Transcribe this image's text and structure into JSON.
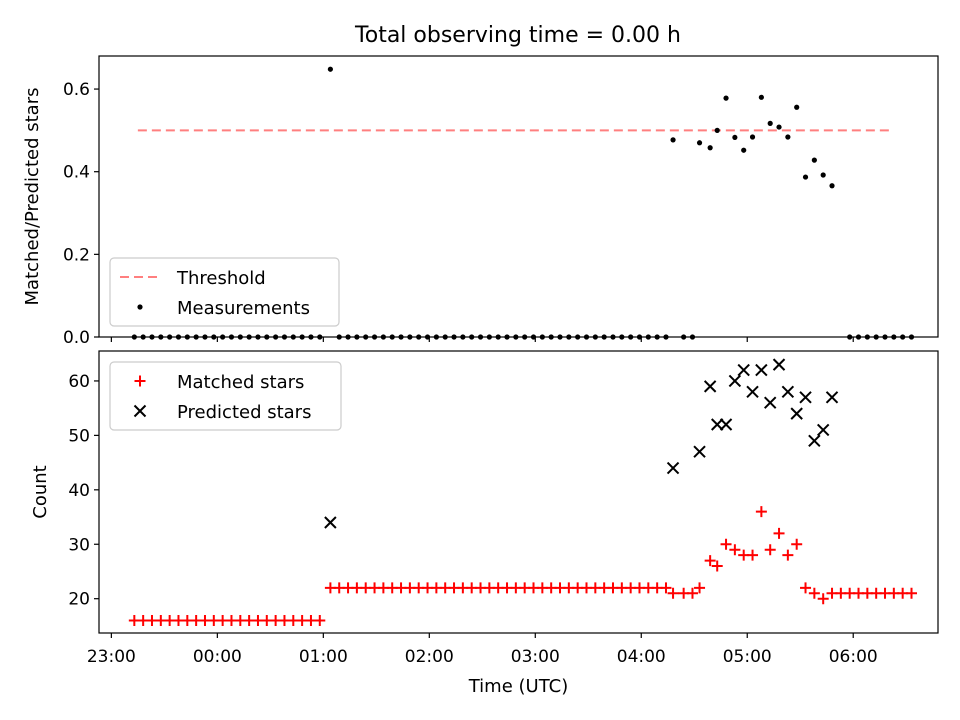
{
  "title": "Total observing time = 0.00 h",
  "chart_data": [
    {
      "type": "scatter",
      "panel": "top",
      "ylabel": "Matched/Predicted stars",
      "xlabel": "",
      "xlim": [
        "22:53",
        "06:48"
      ],
      "ylim": [
        0,
        0.68
      ],
      "yticks": [
        0.0,
        0.2,
        0.4,
        0.6
      ],
      "ytick_labels": [
        "0.0",
        "0.2",
        "0.4",
        "0.6"
      ],
      "xticks": [
        "23:00",
        "00:00",
        "01:00",
        "02:00",
        "03:00",
        "04:00",
        "05:00",
        "06:00"
      ],
      "legend_position": "lower-left",
      "threshold": {
        "name": "Threshold",
        "value": 0.5,
        "x_range": [
          "23:15",
          "06:22"
        ],
        "color": "#ff7f7f",
        "style": "dashed"
      },
      "series": [
        {
          "name": "Measurements",
          "marker": "dot",
          "color": "#000000",
          "points": [
            [
              "23:13",
              0
            ],
            [
              "23:18",
              0
            ],
            [
              "23:23",
              0
            ],
            [
              "23:28",
              0
            ],
            [
              "23:33",
              0
            ],
            [
              "23:38",
              0
            ],
            [
              "23:43",
              0
            ],
            [
              "23:48",
              0
            ],
            [
              "23:53",
              0
            ],
            [
              "23:58",
              0
            ],
            [
              "00:03",
              0
            ],
            [
              "00:08",
              0
            ],
            [
              "00:13",
              0
            ],
            [
              "00:18",
              0
            ],
            [
              "00:23",
              0
            ],
            [
              "00:28",
              0
            ],
            [
              "00:33",
              0
            ],
            [
              "00:38",
              0
            ],
            [
              "00:43",
              0
            ],
            [
              "00:48",
              0
            ],
            [
              "00:53",
              0
            ],
            [
              "00:58",
              0
            ],
            [
              "01:04",
              0.648
            ],
            [
              "01:09",
              0
            ],
            [
              "01:14",
              0
            ],
            [
              "01:19",
              0
            ],
            [
              "01:24",
              0
            ],
            [
              "01:29",
              0
            ],
            [
              "01:34",
              0
            ],
            [
              "01:39",
              0
            ],
            [
              "01:44",
              0
            ],
            [
              "01:49",
              0
            ],
            [
              "01:54",
              0
            ],
            [
              "01:59",
              0
            ],
            [
              "02:04",
              0
            ],
            [
              "02:09",
              0
            ],
            [
              "02:14",
              0
            ],
            [
              "02:19",
              0
            ],
            [
              "02:24",
              0
            ],
            [
              "02:29",
              0
            ],
            [
              "02:34",
              0
            ],
            [
              "02:39",
              0
            ],
            [
              "02:44",
              0
            ],
            [
              "02:49",
              0
            ],
            [
              "02:54",
              0
            ],
            [
              "02:59",
              0
            ],
            [
              "03:04",
              0
            ],
            [
              "03:09",
              0
            ],
            [
              "03:14",
              0
            ],
            [
              "03:19",
              0
            ],
            [
              "03:24",
              0
            ],
            [
              "03:29",
              0
            ],
            [
              "03:34",
              0
            ],
            [
              "03:39",
              0
            ],
            [
              "03:44",
              0
            ],
            [
              "03:49",
              0
            ],
            [
              "03:54",
              0
            ],
            [
              "03:59",
              0
            ],
            [
              "04:04",
              0
            ],
            [
              "04:09",
              0
            ],
            [
              "04:14",
              0
            ],
            [
              "04:24",
              0
            ],
            [
              "04:29",
              0
            ],
            [
              "04:18",
              0.477
            ],
            [
              "04:33",
              0.47
            ],
            [
              "04:39",
              0.458
            ],
            [
              "04:43",
              0.5
            ],
            [
              "04:48",
              0.578
            ],
            [
              "04:53",
              0.483
            ],
            [
              "04:58",
              0.452
            ],
            [
              "05:03",
              0.484
            ],
            [
              "05:08",
              0.58
            ],
            [
              "05:13",
              0.517
            ],
            [
              "05:18",
              0.508
            ],
            [
              "05:23",
              0.484
            ],
            [
              "05:28",
              0.556
            ],
            [
              "05:33",
              0.387
            ],
            [
              "05:38",
              0.428
            ],
            [
              "05:43",
              0.392
            ],
            [
              "05:48",
              0.366
            ],
            [
              "05:58",
              0
            ],
            [
              "06:03",
              0
            ],
            [
              "06:08",
              0
            ],
            [
              "06:13",
              0
            ],
            [
              "06:18",
              0
            ],
            [
              "06:23",
              0
            ],
            [
              "06:28",
              0
            ],
            [
              "06:33",
              0
            ]
          ]
        }
      ]
    },
    {
      "type": "scatter",
      "panel": "bottom",
      "ylabel": "Count",
      "xlabel": "Time (UTC)",
      "xlim": [
        "22:53",
        "06:48"
      ],
      "ylim": [
        13.7,
        65.5
      ],
      "yticks": [
        20,
        30,
        40,
        50,
        60
      ],
      "ytick_labels": [
        "20",
        "30",
        "40",
        "50",
        "60"
      ],
      "xticks": [
        "23:00",
        "00:00",
        "01:00",
        "02:00",
        "03:00",
        "04:00",
        "05:00",
        "06:00"
      ],
      "legend_position": "upper-left",
      "series": [
        {
          "name": "Matched stars",
          "marker": "plus",
          "color": "#ff0000",
          "points": [
            [
              "23:13",
              16
            ],
            [
              "23:18",
              16
            ],
            [
              "23:23",
              16
            ],
            [
              "23:28",
              16
            ],
            [
              "23:33",
              16
            ],
            [
              "23:38",
              16
            ],
            [
              "23:43",
              16
            ],
            [
              "23:48",
              16
            ],
            [
              "23:53",
              16
            ],
            [
              "23:58",
              16
            ],
            [
              "00:03",
              16
            ],
            [
              "00:08",
              16
            ],
            [
              "00:13",
              16
            ],
            [
              "00:18",
              16
            ],
            [
              "00:23",
              16
            ],
            [
              "00:28",
              16
            ],
            [
              "00:33",
              16
            ],
            [
              "00:38",
              16
            ],
            [
              "00:43",
              16
            ],
            [
              "00:48",
              16
            ],
            [
              "00:53",
              16
            ],
            [
              "00:58",
              16
            ],
            [
              "01:04",
              22
            ],
            [
              "01:09",
              22
            ],
            [
              "01:14",
              22
            ],
            [
              "01:19",
              22
            ],
            [
              "01:24",
              22
            ],
            [
              "01:29",
              22
            ],
            [
              "01:34",
              22
            ],
            [
              "01:39",
              22
            ],
            [
              "01:44",
              22
            ],
            [
              "01:49",
              22
            ],
            [
              "01:54",
              22
            ],
            [
              "01:59",
              22
            ],
            [
              "02:04",
              22
            ],
            [
              "02:09",
              22
            ],
            [
              "02:14",
              22
            ],
            [
              "02:19",
              22
            ],
            [
              "02:24",
              22
            ],
            [
              "02:29",
              22
            ],
            [
              "02:34",
              22
            ],
            [
              "02:39",
              22
            ],
            [
              "02:44",
              22
            ],
            [
              "02:49",
              22
            ],
            [
              "02:54",
              22
            ],
            [
              "02:59",
              22
            ],
            [
              "03:04",
              22
            ],
            [
              "03:09",
              22
            ],
            [
              "03:14",
              22
            ],
            [
              "03:19",
              22
            ],
            [
              "03:24",
              22
            ],
            [
              "03:29",
              22
            ],
            [
              "03:34",
              22
            ],
            [
              "03:39",
              22
            ],
            [
              "03:44",
              22
            ],
            [
              "03:49",
              22
            ],
            [
              "03:54",
              22
            ],
            [
              "03:59",
              22
            ],
            [
              "04:04",
              22
            ],
            [
              "04:09",
              22
            ],
            [
              "04:14",
              22
            ],
            [
              "04:18",
              21
            ],
            [
              "04:24",
              21
            ],
            [
              "04:29",
              21
            ],
            [
              "04:33",
              22
            ],
            [
              "04:39",
              27
            ],
            [
              "04:43",
              26
            ],
            [
              "04:48",
              30
            ],
            [
              "04:53",
              29
            ],
            [
              "04:58",
              28
            ],
            [
              "05:03",
              28
            ],
            [
              "05:08",
              36
            ],
            [
              "05:13",
              29
            ],
            [
              "05:18",
              32
            ],
            [
              "05:23",
              28
            ],
            [
              "05:28",
              30
            ],
            [
              "05:33",
              22
            ],
            [
              "05:38",
              21
            ],
            [
              "05:43",
              20
            ],
            [
              "05:48",
              21
            ],
            [
              "05:53",
              21
            ],
            [
              "05:58",
              21
            ],
            [
              "06:03",
              21
            ],
            [
              "06:08",
              21
            ],
            [
              "06:13",
              21
            ],
            [
              "06:18",
              21
            ],
            [
              "06:23",
              21
            ],
            [
              "06:28",
              21
            ],
            [
              "06:33",
              21
            ]
          ]
        },
        {
          "name": "Predicted stars",
          "marker": "x",
          "color": "#000000",
          "points": [
            [
              "01:04",
              34
            ],
            [
              "04:18",
              44
            ],
            [
              "04:33",
              47
            ],
            [
              "04:39",
              59
            ],
            [
              "04:43",
              52
            ],
            [
              "04:48",
              52
            ],
            [
              "04:53",
              60
            ],
            [
              "04:58",
              62
            ],
            [
              "05:03",
              58
            ],
            [
              "05:08",
              62
            ],
            [
              "05:13",
              56
            ],
            [
              "05:18",
              63
            ],
            [
              "05:23",
              58
            ],
            [
              "05:28",
              54
            ],
            [
              "05:33",
              57
            ],
            [
              "05:38",
              49
            ],
            [
              "05:43",
              51
            ],
            [
              "05:48",
              57
            ]
          ]
        }
      ]
    }
  ]
}
